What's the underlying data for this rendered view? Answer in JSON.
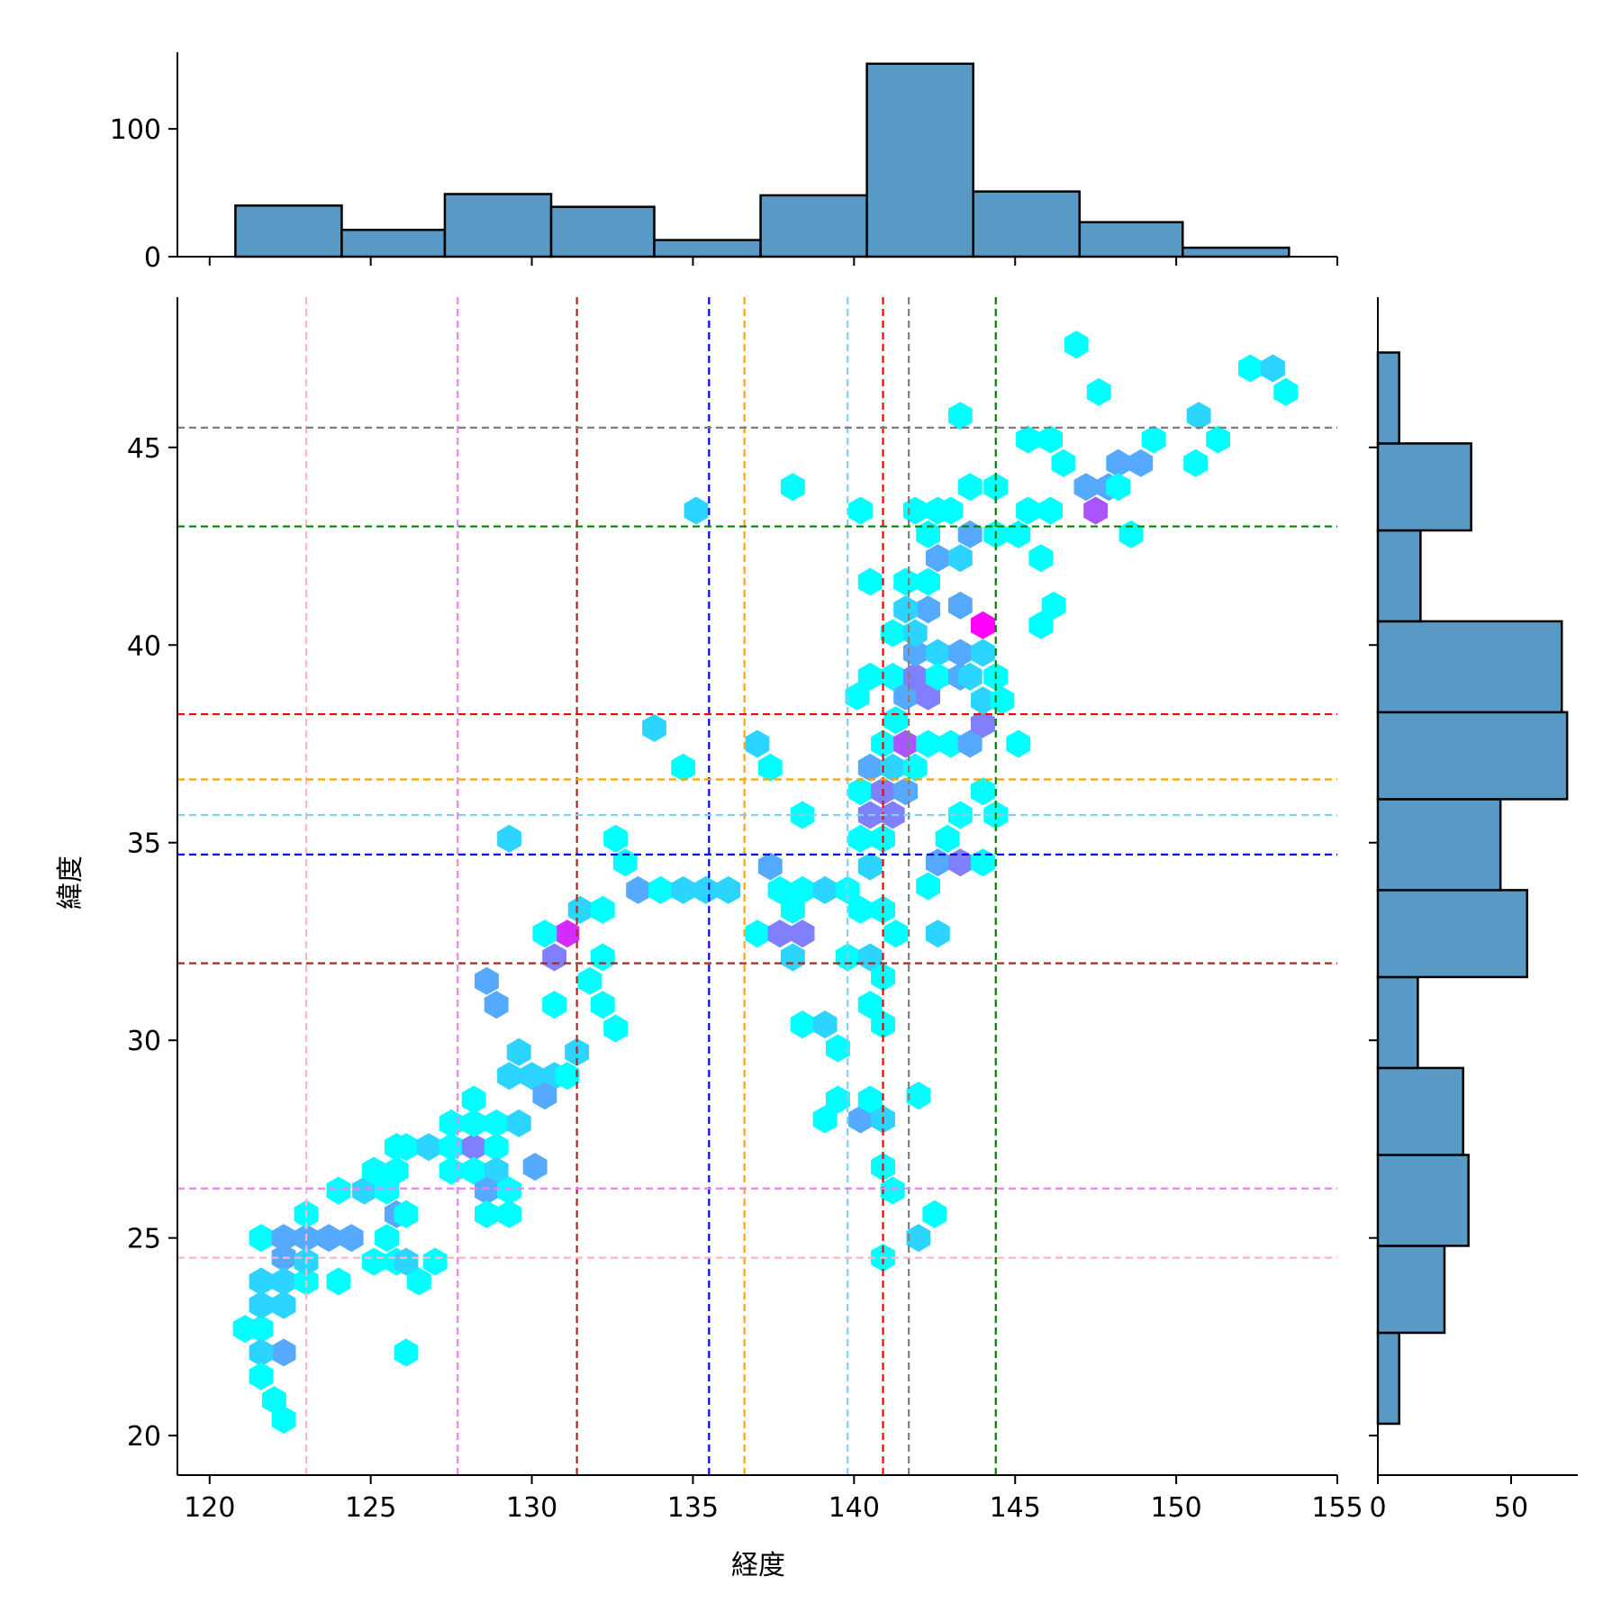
{
  "chart_data": {
    "type": "hexbin-joint",
    "xlabel": "経度",
    "ylabel": "緯度",
    "main": {
      "xlim": [
        119,
        155
      ],
      "ylim": [
        19,
        48.8
      ],
      "xticks": [
        120,
        125,
        130,
        135,
        140,
        145,
        150,
        155
      ],
      "yticks": [
        20,
        25,
        30,
        35,
        40,
        45
      ],
      "xtick_labels": [
        "120",
        "125",
        "130",
        "135",
        "140",
        "145",
        "150",
        "155"
      ],
      "ytick_labels": [
        "20",
        "25",
        "30",
        "35",
        "40",
        "45"
      ]
    },
    "reference_lines": {
      "vertical": [
        {
          "x": 123.0,
          "color": "#ffb6c1"
        },
        {
          "x": 127.7,
          "color": "#ee82ee"
        },
        {
          "x": 131.4,
          "color": "#a52a2a"
        },
        {
          "x": 135.5,
          "color": "#0000ff"
        },
        {
          "x": 136.6,
          "color": "#ffa500"
        },
        {
          "x": 139.8,
          "color": "#87ceeb"
        },
        {
          "x": 140.9,
          "color": "#ff0000"
        },
        {
          "x": 141.7,
          "color": "#808080"
        },
        {
          "x": 144.4,
          "color": "#008000"
        }
      ],
      "horizontal": [
        {
          "y": 45.5,
          "color": "#808080"
        },
        {
          "y": 43.0,
          "color": "#008000"
        },
        {
          "y": 38.25,
          "color": "#ff0000"
        },
        {
          "y": 36.6,
          "color": "#ffa500"
        },
        {
          "y": 35.7,
          "color": "#87ceeb"
        },
        {
          "y": 34.7,
          "color": "#0000ff"
        },
        {
          "y": 31.95,
          "color": "#a52a2a"
        },
        {
          "y": 26.25,
          "color": "#ee82ee"
        },
        {
          "y": 24.5,
          "color": "#ffb6c1"
        }
      ]
    },
    "hexbins": [
      [
        121.6,
        25.0,
        1
      ],
      [
        122.3,
        25.0,
        3
      ],
      [
        123.0,
        25.0,
        3
      ],
      [
        122.3,
        24.5,
        3
      ],
      [
        121.6,
        23.9,
        2
      ],
      [
        122.3,
        23.9,
        2
      ],
      [
        121.1,
        22.7,
        1
      ],
      [
        121.6,
        22.7,
        1
      ],
      [
        121.6,
        23.3,
        2
      ],
      [
        122.3,
        23.3,
        2
      ],
      [
        122.3,
        22.1,
        3
      ],
      [
        121.6,
        22.1,
        2
      ],
      [
        121.6,
        21.5,
        1
      ],
      [
        122.0,
        20.9,
        1
      ],
      [
        122.3,
        20.4,
        1
      ],
      [
        123.0,
        23.9,
        1
      ],
      [
        123.0,
        25.6,
        1
      ],
      [
        123.0,
        24.4,
        2
      ],
      [
        123.7,
        25.0,
        3
      ],
      [
        124.4,
        25.0,
        3
      ],
      [
        124.0,
        23.9,
        1
      ],
      [
        125.1,
        24.4,
        1
      ],
      [
        125.8,
        24.4,
        1
      ],
      [
        126.5,
        23.9,
        1
      ],
      [
        127.0,
        24.4,
        1
      ],
      [
        126.1,
        22.1,
        1
      ],
      [
        124.0,
        26.2,
        1
      ],
      [
        124.8,
        26.2,
        2
      ],
      [
        125.5,
        26.2,
        1
      ],
      [
        125.8,
        25.6,
        3
      ],
      [
        125.5,
        25.0,
        1
      ],
      [
        126.1,
        24.4,
        2
      ],
      [
        125.1,
        26.7,
        1
      ],
      [
        125.8,
        26.7,
        1
      ],
      [
        126.1,
        27.3,
        1
      ],
      [
        126.8,
        27.3,
        2
      ],
      [
        125.8,
        27.3,
        1
      ],
      [
        126.1,
        25.6,
        1
      ],
      [
        127.5,
        27.3,
        1
      ],
      [
        128.2,
        27.3,
        4
      ],
      [
        128.9,
        27.3,
        1
      ],
      [
        127.5,
        26.7,
        1
      ],
      [
        128.2,
        26.7,
        1
      ],
      [
        128.9,
        26.7,
        2
      ],
      [
        128.6,
        26.2,
        3
      ],
      [
        129.3,
        26.2,
        1
      ],
      [
        128.6,
        25.6,
        1
      ],
      [
        129.3,
        25.6,
        1
      ],
      [
        127.5,
        27.9,
        1
      ],
      [
        128.2,
        27.9,
        1
      ],
      [
        128.9,
        27.9,
        1
      ],
      [
        128.2,
        28.5,
        1
      ],
      [
        129.6,
        27.9,
        2
      ],
      [
        130.1,
        26.8,
        3
      ],
      [
        129.3,
        29.1,
        2
      ],
      [
        130.0,
        29.1,
        2
      ],
      [
        130.7,
        29.1,
        2
      ],
      [
        129.6,
        29.7,
        2
      ],
      [
        130.4,
        28.6,
        3
      ],
      [
        131.1,
        29.1,
        1
      ],
      [
        131.4,
        29.7,
        2
      ],
      [
        132.6,
        30.3,
        1
      ],
      [
        130.7,
        30.9,
        1
      ],
      [
        128.6,
        31.5,
        3
      ],
      [
        128.9,
        30.9,
        3
      ],
      [
        132.2,
        30.9,
        1
      ],
      [
        131.8,
        31.5,
        1
      ],
      [
        132.2,
        32.1,
        1
      ],
      [
        131.1,
        32.7,
        6
      ],
      [
        130.7,
        32.1,
        4
      ],
      [
        130.4,
        32.7,
        1
      ],
      [
        131.5,
        33.3,
        2
      ],
      [
        132.2,
        33.3,
        1
      ],
      [
        129.3,
        35.1,
        2
      ],
      [
        132.6,
        35.1,
        1
      ],
      [
        132.9,
        34.5,
        1
      ],
      [
        133.3,
        33.8,
        3
      ],
      [
        134.0,
        33.8,
        1
      ],
      [
        134.7,
        33.8,
        2
      ],
      [
        135.4,
        33.8,
        2
      ],
      [
        136.1,
        33.8,
        2
      ],
      [
        133.8,
        37.9,
        2
      ],
      [
        134.7,
        36.9,
        1
      ],
      [
        135.1,
        43.4,
        2
      ],
      [
        137.0,
        37.5,
        2
      ],
      [
        137.4,
        36.9,
        1
      ],
      [
        137.0,
        32.7,
        1
      ],
      [
        137.4,
        34.4,
        3
      ],
      [
        137.7,
        33.8,
        1
      ],
      [
        138.1,
        33.3,
        1
      ],
      [
        137.7,
        32.7,
        4
      ],
      [
        138.4,
        32.7,
        4
      ],
      [
        138.1,
        32.1,
        2
      ],
      [
        138.4,
        33.8,
        1
      ],
      [
        139.1,
        33.8,
        2
      ],
      [
        138.4,
        35.7,
        1
      ],
      [
        138.1,
        44.0,
        1
      ],
      [
        138.4,
        30.4,
        1
      ],
      [
        139.1,
        30.4,
        2
      ],
      [
        139.5,
        29.8,
        1
      ],
      [
        139.1,
        28.0,
        1
      ],
      [
        139.5,
        28.5,
        1
      ],
      [
        140.2,
        28.0,
        3
      ],
      [
        140.5,
        28.5,
        1
      ],
      [
        140.9,
        28.0,
        2
      ],
      [
        139.8,
        32.1,
        1
      ],
      [
        140.5,
        32.1,
        2
      ],
      [
        140.2,
        33.3,
        1
      ],
      [
        140.9,
        33.3,
        1
      ],
      [
        139.8,
        33.8,
        1
      ],
      [
        140.5,
        34.4,
        2
      ],
      [
        140.2,
        35.1,
        1
      ],
      [
        140.9,
        35.1,
        1
      ],
      [
        140.5,
        35.7,
        4
      ],
      [
        141.2,
        35.7,
        4
      ],
      [
        140.2,
        36.3,
        1
      ],
      [
        140.9,
        36.3,
        4
      ],
      [
        141.6,
        36.3,
        3
      ],
      [
        140.5,
        36.9,
        3
      ],
      [
        141.2,
        36.9,
        2
      ],
      [
        141.9,
        36.9,
        1
      ],
      [
        140.9,
        37.5,
        1
      ],
      [
        141.6,
        37.5,
        5
      ],
      [
        142.3,
        37.5,
        1
      ],
      [
        143.0,
        37.5,
        1
      ],
      [
        143.6,
        37.5,
        3
      ],
      [
        144.0,
        38.0,
        4
      ],
      [
        141.3,
        38.1,
        1
      ],
      [
        140.1,
        38.7,
        1
      ],
      [
        140.5,
        39.2,
        1
      ],
      [
        141.2,
        39.2,
        1
      ],
      [
        141.6,
        38.7,
        3
      ],
      [
        141.9,
        39.2,
        4
      ],
      [
        142.3,
        38.7,
        4
      ],
      [
        141.9,
        39.8,
        3
      ],
      [
        142.6,
        39.8,
        2
      ],
      [
        143.3,
        39.8,
        3
      ],
      [
        142.6,
        39.2,
        1
      ],
      [
        143.3,
        39.2,
        3
      ],
      [
        144.0,
        39.8,
        2
      ],
      [
        143.6,
        39.2,
        2
      ],
      [
        144.4,
        39.2,
        1
      ],
      [
        144.0,
        38.6,
        2
      ],
      [
        144.6,
        38.6,
        1
      ],
      [
        141.2,
        40.3,
        1
      ],
      [
        141.9,
        40.3,
        2
      ],
      [
        142.3,
        40.9,
        3
      ],
      [
        141.6,
        40.9,
        2
      ],
      [
        142.3,
        41.6,
        1
      ],
      [
        141.6,
        41.6,
        1
      ],
      [
        143.3,
        41.0,
        3
      ],
      [
        144.0,
        40.5,
        7
      ],
      [
        142.6,
        42.2,
        3
      ],
      [
        143.3,
        42.2,
        2
      ],
      [
        143.6,
        42.8,
        3
      ],
      [
        142.3,
        42.8,
        1
      ],
      [
        141.9,
        43.4,
        1
      ],
      [
        143.0,
        43.4,
        1
      ],
      [
        144.4,
        42.8,
        1
      ],
      [
        145.1,
        42.8,
        1
      ],
      [
        145.4,
        43.4,
        1
      ],
      [
        145.8,
        42.2,
        1
      ],
      [
        143.6,
        44.0,
        1
      ],
      [
        144.4,
        44.0,
        1
      ],
      [
        142.6,
        43.4,
        1
      ],
      [
        140.2,
        43.4,
        1
      ],
      [
        140.5,
        41.6,
        1
      ],
      [
        141.3,
        32.7,
        1
      ],
      [
        140.9,
        31.6,
        1
      ],
      [
        140.5,
        30.9,
        1
      ],
      [
        140.9,
        30.4,
        1
      ],
      [
        140.9,
        26.8,
        1
      ],
      [
        141.2,
        26.2,
        1
      ],
      [
        140.9,
        24.5,
        1
      ],
      [
        142.0,
        28.6,
        1
      ],
      [
        142.0,
        25.0,
        2
      ],
      [
        142.5,
        25.6,
        1
      ],
      [
        142.6,
        32.7,
        2
      ],
      [
        142.3,
        33.9,
        1
      ],
      [
        142.6,
        34.5,
        3
      ],
      [
        143.3,
        34.5,
        4
      ],
      [
        144.0,
        34.5,
        1
      ],
      [
        142.9,
        35.1,
        1
      ],
      [
        143.3,
        35.7,
        1
      ],
      [
        144.0,
        36.3,
        1
      ],
      [
        144.4,
        35.7,
        1
      ],
      [
        145.1,
        37.5,
        1
      ],
      [
        145.8,
        40.5,
        1
      ],
      [
        146.2,
        41.0,
        1
      ],
      [
        146.1,
        43.4,
        1
      ],
      [
        145.4,
        45.2,
        1
      ],
      [
        146.1,
        45.2,
        1
      ],
      [
        146.5,
        44.6,
        1
      ],
      [
        147.2,
        44.0,
        3
      ],
      [
        147.5,
        43.4,
        5
      ],
      [
        147.9,
        44.0,
        3
      ],
      [
        148.2,
        44.6,
        3
      ],
      [
        148.9,
        44.6,
        3
      ],
      [
        148.2,
        44.0,
        1
      ],
      [
        148.6,
        42.8,
        1
      ],
      [
        149.3,
        45.2,
        1
      ],
      [
        146.9,
        47.6,
        1
      ],
      [
        147.6,
        46.4,
        1
      ],
      [
        143.3,
        45.8,
        1
      ],
      [
        150.6,
        44.6,
        1
      ],
      [
        150.7,
        45.8,
        2
      ],
      [
        151.3,
        45.2,
        1
      ],
      [
        152.3,
        47.0,
        1
      ],
      [
        153.0,
        47.0,
        2
      ],
      [
        153.4,
        46.4,
        1
      ]
    ],
    "marginal_x": {
      "bins": [
        [
          120.8,
          124.1,
          40
        ],
        [
          124.1,
          127.3,
          21
        ],
        [
          127.3,
          130.6,
          49
        ],
        [
          130.6,
          133.8,
          39
        ],
        [
          133.8,
          137.1,
          13
        ],
        [
          137.1,
          140.4,
          48
        ],
        [
          140.4,
          143.7,
          151
        ],
        [
          143.7,
          147.0,
          51
        ],
        [
          147.0,
          150.2,
          27
        ],
        [
          150.2,
          153.5,
          7
        ]
      ],
      "ylim": [
        0,
        160
      ],
      "yticks": [
        0,
        100
      ],
      "ytick_labels": [
        "0",
        "100"
      ]
    },
    "marginal_y": {
      "bins": [
        [
          20.3,
          22.6,
          8
        ],
        [
          22.6,
          24.8,
          25
        ],
        [
          24.8,
          27.1,
          34
        ],
        [
          27.1,
          29.3,
          32
        ],
        [
          29.3,
          31.6,
          15
        ],
        [
          31.6,
          33.8,
          56
        ],
        [
          33.8,
          36.1,
          46
        ],
        [
          36.1,
          38.3,
          71
        ],
        [
          38.3,
          40.6,
          69
        ],
        [
          40.6,
          42.9,
          16
        ],
        [
          42.9,
          45.1,
          35
        ],
        [
          45.1,
          47.4,
          8
        ]
      ],
      "xlim": [
        0,
        75
      ],
      "xticks": [
        0,
        50
      ],
      "xtick_labels": [
        "0",
        "50"
      ]
    },
    "colors": {
      "hist_fill": "#5899c5",
      "edge": "#000000",
      "hex_min": "#00ffff",
      "hex_max": "#ff00ff"
    }
  }
}
